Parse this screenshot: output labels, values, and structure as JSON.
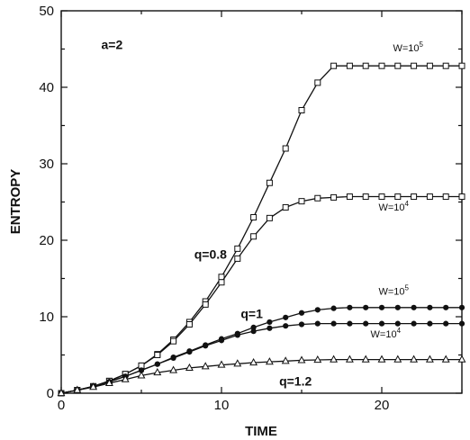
{
  "chart_data": {
    "type": "line",
    "xlabel": "TIME",
    "ylabel": "ENTROPY",
    "xlim": [
      0,
      25
    ],
    "ylim": [
      0,
      50
    ],
    "xticks": [
      0,
      10,
      20
    ],
    "yticks": [
      0,
      10,
      20,
      30,
      40,
      50
    ],
    "grid": false,
    "legend": "none",
    "annotations": [
      {
        "text": "a=2",
        "x": 2.5,
        "y": 45
      },
      {
        "text": "q=0.8",
        "x": 8.3,
        "y": 17.6
      },
      {
        "text": "q=1",
        "x": 11.2,
        "y": 9.8
      },
      {
        "text": "q=1.2",
        "x": 13.6,
        "y": 1.0
      }
    ],
    "series_labels": [
      {
        "base": "W=10",
        "exp": "5",
        "x": 20.7,
        "y": 44.7
      },
      {
        "base": "W=10",
        "exp": "4",
        "x": 19.8,
        "y": 23.9
      },
      {
        "base": "W=10",
        "exp": "5",
        "x": 19.8,
        "y": 12.9
      },
      {
        "base": "W=10",
        "exp": "4",
        "x": 19.3,
        "y": 7.3
      }
    ],
    "series": [
      {
        "marker": "open-square",
        "x": [
          0,
          1,
          2,
          3,
          4,
          5,
          6,
          7,
          8,
          9,
          10,
          11,
          12,
          13,
          14,
          15,
          16,
          17,
          18,
          19,
          20,
          21,
          22,
          23,
          24,
          25
        ],
        "values": [
          0,
          0.4,
          0.9,
          1.6,
          2.5,
          3.6,
          5.1,
          7.0,
          9.3,
          12.0,
          15.2,
          18.9,
          23.0,
          27.5,
          32.0,
          37.0,
          40.6,
          42.8,
          42.8,
          42.8,
          42.8,
          42.8,
          42.8,
          42.8,
          42.8,
          42.8
        ]
      },
      {
        "marker": "open-square",
        "x": [
          0,
          1,
          2,
          3,
          4,
          5,
          6,
          7,
          8,
          9,
          10,
          11,
          12,
          13,
          14,
          15,
          16,
          17,
          18,
          19,
          20,
          21,
          22,
          23,
          24,
          25
        ],
        "values": [
          0,
          0.4,
          0.9,
          1.6,
          2.5,
          3.6,
          5.0,
          6.8,
          9.0,
          11.6,
          14.5,
          17.6,
          20.5,
          22.9,
          24.3,
          25.1,
          25.5,
          25.6,
          25.7,
          25.7,
          25.7,
          25.7,
          25.7,
          25.7,
          25.7,
          25.7
        ]
      },
      {
        "marker": "filled-circle",
        "x": [
          0,
          1,
          2,
          3,
          4,
          5,
          6,
          7,
          8,
          9,
          10,
          11,
          12,
          13,
          14,
          15,
          16,
          17,
          18,
          19,
          20,
          21,
          22,
          23,
          24,
          25
        ],
        "values": [
          0,
          0.4,
          0.9,
          1.5,
          2.2,
          3.0,
          3.8,
          4.7,
          5.5,
          6.3,
          7.1,
          7.8,
          8.6,
          9.3,
          9.9,
          10.5,
          10.9,
          11.1,
          11.2,
          11.2,
          11.2,
          11.2,
          11.2,
          11.2,
          11.2,
          11.2
        ]
      },
      {
        "marker": "filled-circle",
        "x": [
          0,
          1,
          2,
          3,
          4,
          5,
          6,
          7,
          8,
          9,
          10,
          11,
          12,
          13,
          14,
          15,
          16,
          17,
          18,
          19,
          20,
          21,
          22,
          23,
          24,
          25
        ],
        "values": [
          0,
          0.4,
          0.9,
          1.5,
          2.2,
          3.0,
          3.8,
          4.6,
          5.4,
          6.2,
          6.9,
          7.6,
          8.1,
          8.5,
          8.8,
          9.0,
          9.1,
          9.1,
          9.1,
          9.1,
          9.1,
          9.1,
          9.1,
          9.1,
          9.1,
          9.1
        ]
      },
      {
        "marker": "open-triangle",
        "x": [
          0,
          1,
          2,
          3,
          4,
          5,
          6,
          7,
          8,
          9,
          10,
          11,
          12,
          13,
          14,
          15,
          16,
          17,
          18,
          19,
          20,
          21,
          22,
          23,
          24,
          25
        ],
        "values": [
          0,
          0.4,
          0.8,
          1.3,
          1.8,
          2.3,
          2.7,
          3.0,
          3.3,
          3.5,
          3.7,
          3.85,
          4.0,
          4.1,
          4.2,
          4.3,
          4.35,
          4.4,
          4.4,
          4.4,
          4.4,
          4.4,
          4.4,
          4.4,
          4.4,
          4.4
        ]
      }
    ]
  }
}
